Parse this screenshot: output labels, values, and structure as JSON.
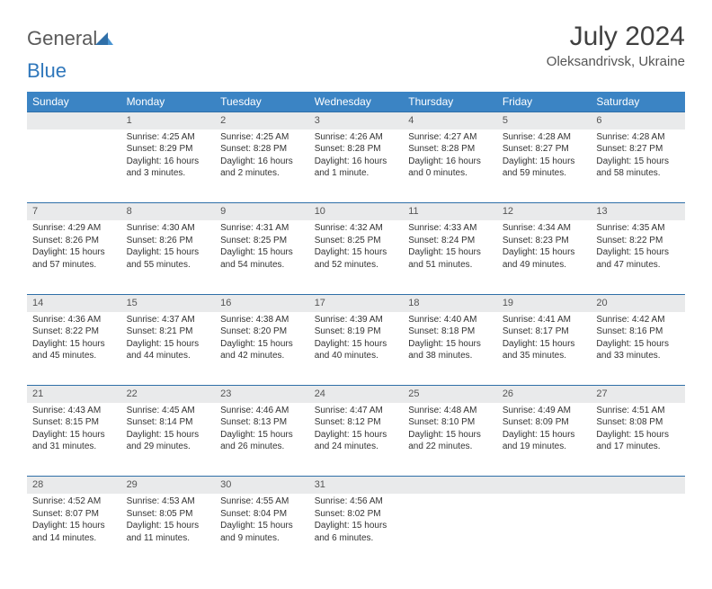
{
  "brand": {
    "part1": "General",
    "part2": "Blue"
  },
  "title": "July 2024",
  "location": "Oleksandrivsk, Ukraine",
  "colors": {
    "header_bg": "#3b84c4",
    "header_text": "#ffffff",
    "rule": "#2f6fa8",
    "daynum_bg": "#e9eaeb",
    "body_text": "#333333",
    "title_text": "#404040",
    "brand_gray": "#5a5a5a",
    "brand_blue": "#2f77bb"
  },
  "weekdays": [
    "Sunday",
    "Monday",
    "Tuesday",
    "Wednesday",
    "Thursday",
    "Friday",
    "Saturday"
  ],
  "weeks": [
    [
      null,
      {
        "n": "1",
        "sr": "Sunrise: 4:25 AM",
        "ss": "Sunset: 8:29 PM",
        "dl": "Daylight: 16 hours and 3 minutes."
      },
      {
        "n": "2",
        "sr": "Sunrise: 4:25 AM",
        "ss": "Sunset: 8:28 PM",
        "dl": "Daylight: 16 hours and 2 minutes."
      },
      {
        "n": "3",
        "sr": "Sunrise: 4:26 AM",
        "ss": "Sunset: 8:28 PM",
        "dl": "Daylight: 16 hours and 1 minute."
      },
      {
        "n": "4",
        "sr": "Sunrise: 4:27 AM",
        "ss": "Sunset: 8:28 PM",
        "dl": "Daylight: 16 hours and 0 minutes."
      },
      {
        "n": "5",
        "sr": "Sunrise: 4:28 AM",
        "ss": "Sunset: 8:27 PM",
        "dl": "Daylight: 15 hours and 59 minutes."
      },
      {
        "n": "6",
        "sr": "Sunrise: 4:28 AM",
        "ss": "Sunset: 8:27 PM",
        "dl": "Daylight: 15 hours and 58 minutes."
      }
    ],
    [
      {
        "n": "7",
        "sr": "Sunrise: 4:29 AM",
        "ss": "Sunset: 8:26 PM",
        "dl": "Daylight: 15 hours and 57 minutes."
      },
      {
        "n": "8",
        "sr": "Sunrise: 4:30 AM",
        "ss": "Sunset: 8:26 PM",
        "dl": "Daylight: 15 hours and 55 minutes."
      },
      {
        "n": "9",
        "sr": "Sunrise: 4:31 AM",
        "ss": "Sunset: 8:25 PM",
        "dl": "Daylight: 15 hours and 54 minutes."
      },
      {
        "n": "10",
        "sr": "Sunrise: 4:32 AM",
        "ss": "Sunset: 8:25 PM",
        "dl": "Daylight: 15 hours and 52 minutes."
      },
      {
        "n": "11",
        "sr": "Sunrise: 4:33 AM",
        "ss": "Sunset: 8:24 PM",
        "dl": "Daylight: 15 hours and 51 minutes."
      },
      {
        "n": "12",
        "sr": "Sunrise: 4:34 AM",
        "ss": "Sunset: 8:23 PM",
        "dl": "Daylight: 15 hours and 49 minutes."
      },
      {
        "n": "13",
        "sr": "Sunrise: 4:35 AM",
        "ss": "Sunset: 8:22 PM",
        "dl": "Daylight: 15 hours and 47 minutes."
      }
    ],
    [
      {
        "n": "14",
        "sr": "Sunrise: 4:36 AM",
        "ss": "Sunset: 8:22 PM",
        "dl": "Daylight: 15 hours and 45 minutes."
      },
      {
        "n": "15",
        "sr": "Sunrise: 4:37 AM",
        "ss": "Sunset: 8:21 PM",
        "dl": "Daylight: 15 hours and 44 minutes."
      },
      {
        "n": "16",
        "sr": "Sunrise: 4:38 AM",
        "ss": "Sunset: 8:20 PM",
        "dl": "Daylight: 15 hours and 42 minutes."
      },
      {
        "n": "17",
        "sr": "Sunrise: 4:39 AM",
        "ss": "Sunset: 8:19 PM",
        "dl": "Daylight: 15 hours and 40 minutes."
      },
      {
        "n": "18",
        "sr": "Sunrise: 4:40 AM",
        "ss": "Sunset: 8:18 PM",
        "dl": "Daylight: 15 hours and 38 minutes."
      },
      {
        "n": "19",
        "sr": "Sunrise: 4:41 AM",
        "ss": "Sunset: 8:17 PM",
        "dl": "Daylight: 15 hours and 35 minutes."
      },
      {
        "n": "20",
        "sr": "Sunrise: 4:42 AM",
        "ss": "Sunset: 8:16 PM",
        "dl": "Daylight: 15 hours and 33 minutes."
      }
    ],
    [
      {
        "n": "21",
        "sr": "Sunrise: 4:43 AM",
        "ss": "Sunset: 8:15 PM",
        "dl": "Daylight: 15 hours and 31 minutes."
      },
      {
        "n": "22",
        "sr": "Sunrise: 4:45 AM",
        "ss": "Sunset: 8:14 PM",
        "dl": "Daylight: 15 hours and 29 minutes."
      },
      {
        "n": "23",
        "sr": "Sunrise: 4:46 AM",
        "ss": "Sunset: 8:13 PM",
        "dl": "Daylight: 15 hours and 26 minutes."
      },
      {
        "n": "24",
        "sr": "Sunrise: 4:47 AM",
        "ss": "Sunset: 8:12 PM",
        "dl": "Daylight: 15 hours and 24 minutes."
      },
      {
        "n": "25",
        "sr": "Sunrise: 4:48 AM",
        "ss": "Sunset: 8:10 PM",
        "dl": "Daylight: 15 hours and 22 minutes."
      },
      {
        "n": "26",
        "sr": "Sunrise: 4:49 AM",
        "ss": "Sunset: 8:09 PM",
        "dl": "Daylight: 15 hours and 19 minutes."
      },
      {
        "n": "27",
        "sr": "Sunrise: 4:51 AM",
        "ss": "Sunset: 8:08 PM",
        "dl": "Daylight: 15 hours and 17 minutes."
      }
    ],
    [
      {
        "n": "28",
        "sr": "Sunrise: 4:52 AM",
        "ss": "Sunset: 8:07 PM",
        "dl": "Daylight: 15 hours and 14 minutes."
      },
      {
        "n": "29",
        "sr": "Sunrise: 4:53 AM",
        "ss": "Sunset: 8:05 PM",
        "dl": "Daylight: 15 hours and 11 minutes."
      },
      {
        "n": "30",
        "sr": "Sunrise: 4:55 AM",
        "ss": "Sunset: 8:04 PM",
        "dl": "Daylight: 15 hours and 9 minutes."
      },
      {
        "n": "31",
        "sr": "Sunrise: 4:56 AM",
        "ss": "Sunset: 8:02 PM",
        "dl": "Daylight: 15 hours and 6 minutes."
      },
      null,
      null,
      null
    ]
  ]
}
